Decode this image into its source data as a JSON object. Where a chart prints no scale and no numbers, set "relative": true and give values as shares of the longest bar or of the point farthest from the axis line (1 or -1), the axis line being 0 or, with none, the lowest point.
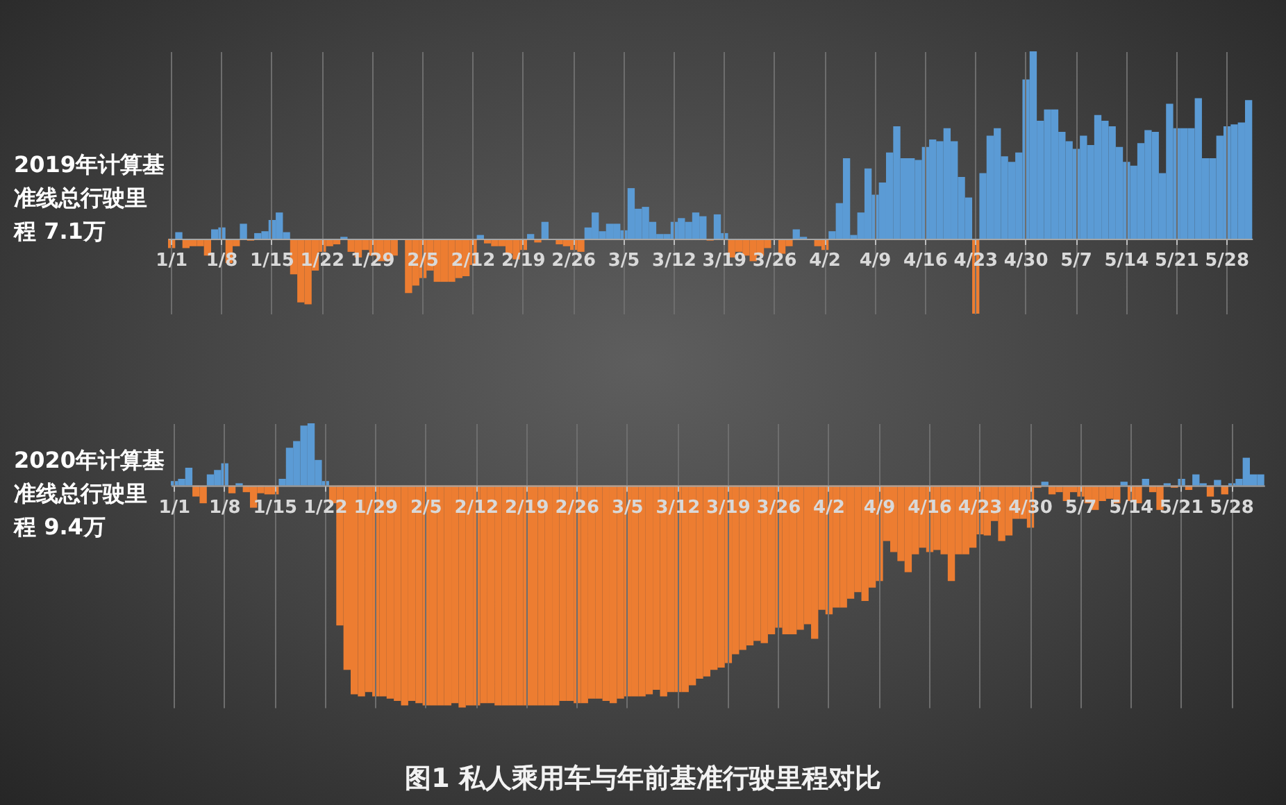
{
  "chart_data": [
    {
      "type": "bar",
      "ylabel": "2019年计算基准线总行驶里程 7.1万",
      "relative": true,
      "grid": "x",
      "categories": [
        "1/1",
        null,
        null,
        null,
        null,
        null,
        null,
        "1/8",
        null,
        null,
        null,
        null,
        null,
        null,
        "1/15",
        null,
        null,
        null,
        null,
        null,
        null,
        "1/22",
        null,
        null,
        null,
        null,
        null,
        null,
        "1/29",
        null,
        null,
        null,
        null,
        null,
        null,
        "2/5",
        null,
        null,
        null,
        null,
        null,
        null,
        "2/12",
        null,
        null,
        null,
        null,
        null,
        null,
        "2/19",
        null,
        null,
        null,
        null,
        null,
        null,
        "2/26",
        null,
        null,
        null,
        null,
        null,
        null,
        "3/5",
        null,
        null,
        null,
        null,
        null,
        null,
        "3/12",
        null,
        null,
        null,
        null,
        null,
        null,
        "3/19",
        null,
        null,
        null,
        null,
        null,
        null,
        "3/26",
        null,
        null,
        null,
        null,
        null,
        null,
        "4/2",
        null,
        null,
        null,
        null,
        null,
        null,
        "4/9",
        null,
        null,
        null,
        null,
        null,
        null,
        "4/16",
        null,
        null,
        null,
        null,
        null,
        null,
        "4/23",
        null,
        null,
        null,
        null,
        null,
        null,
        "4/30",
        null,
        null,
        null,
        null,
        null,
        null,
        "5/7",
        null,
        null,
        null,
        null,
        null,
        null,
        "5/14",
        null,
        null,
        null,
        null,
        null,
        null,
        "5/21",
        null,
        null,
        null,
        null,
        null,
        null,
        "5/28",
        null,
        null,
        null
      ],
      "series": [
        {
          "color": "#5b9bd5",
          "values": [
            null,
            0.035,
            null,
            null,
            null,
            null,
            0.05,
            0.06,
            null,
            null,
            0.08,
            null,
            0.03,
            0.04,
            0.1,
            0.14,
            0.035,
            null,
            null,
            null,
            null,
            null,
            null,
            null,
            0.01,
            null,
            null,
            null,
            null,
            null,
            null,
            null,
            null,
            null,
            null,
            null,
            null,
            null,
            null,
            null,
            null,
            null,
            null,
            0.02,
            null,
            null,
            null,
            null,
            null,
            null,
            0.025,
            null,
            0.09,
            null,
            null,
            null,
            null,
            null,
            0.06,
            0.14,
            0.04,
            0.08,
            0.08,
            0.045,
            0.27,
            0.16,
            0.17,
            0.09,
            0.025,
            0.025,
            0.09,
            0.11,
            0.09,
            0.14,
            0.12,
            null,
            0.13,
            0.03,
            null,
            null,
            null,
            null,
            null,
            null,
            null,
            null,
            null,
            0.05,
            0.01,
            null,
            null,
            null,
            0.04,
            0.19,
            0.43,
            0.02,
            0.14,
            0.375,
            0.235,
            0.3,
            0.46,
            0.6,
            0.43,
            0.43,
            0.42,
            0.49,
            0.53,
            0.52,
            0.59,
            0.52,
            0.33,
            0.22,
            null,
            0.35,
            0.55,
            0.59,
            0.44,
            0.41,
            0.46,
            0.85,
            1.0,
            0.63,
            0.69,
            0.69,
            0.57,
            0.52,
            0.48,
            0.55,
            0.5,
            0.66,
            0.63,
            0.6,
            0.49,
            0.41,
            0.39,
            0.51,
            0.58,
            0.57,
            0.35,
            0.72,
            0.59,
            0.59,
            0.59,
            0.75,
            0.43,
            0.43,
            0.55,
            0.6,
            0.61,
            0.62,
            0.74
          ]
        },
        {
          "color": "#ed7d31",
          "values": [
            -0.05,
            null,
            -0.05,
            -0.04,
            -0.04,
            -0.09,
            null,
            null,
            -0.13,
            -0.04,
            null,
            -0.01,
            null,
            null,
            null,
            null,
            null,
            -0.19,
            -0.34,
            -0.35,
            -0.17,
            -0.07,
            -0.04,
            -0.03,
            null,
            -0.07,
            -0.1,
            -0.06,
            -0.09,
            -0.12,
            -0.12,
            -0.09,
            null,
            -0.29,
            -0.25,
            -0.21,
            -0.17,
            -0.23,
            -0.23,
            -0.23,
            -0.21,
            -0.2,
            -0.14,
            null,
            -0.025,
            -0.04,
            -0.04,
            -0.08,
            -0.11,
            -0.06,
            null,
            -0.02,
            null,
            null,
            -0.03,
            -0.04,
            -0.06,
            -0.07,
            null,
            null,
            null,
            null,
            null,
            null,
            null,
            null,
            null,
            null,
            null,
            null,
            null,
            null,
            null,
            null,
            null,
            -0.01,
            null,
            null,
            -0.1,
            -0.07,
            -0.09,
            -0.12,
            -0.09,
            -0.05,
            null,
            -0.08,
            -0.04,
            null,
            null,
            null,
            -0.04,
            -0.06,
            null,
            null,
            null,
            null,
            null,
            null,
            null,
            null,
            null,
            null,
            null,
            null,
            null,
            null,
            null,
            null,
            null,
            null,
            null,
            null,
            -0.4,
            null,
            null,
            null,
            null,
            null,
            null,
            null,
            null,
            null,
            null,
            null,
            null,
            null,
            null,
            null,
            null,
            null,
            null,
            null,
            null,
            null,
            null,
            null,
            null,
            null,
            null,
            null,
            null,
            null,
            null,
            null,
            null,
            null,
            null,
            null,
            null,
            null,
            null
          ]
        }
      ]
    },
    {
      "type": "bar",
      "ylabel": "2020年计算基准线总行驶里程 9.4万",
      "title": "图1  私人乘用车与年前基准行驶里程对比",
      "relative": true,
      "grid": "x",
      "categories": [
        "1/1",
        null,
        null,
        null,
        null,
        null,
        null,
        "1/8",
        null,
        null,
        null,
        null,
        null,
        null,
        "1/15",
        null,
        null,
        null,
        null,
        null,
        null,
        "1/22",
        null,
        null,
        null,
        null,
        null,
        null,
        "1/29",
        null,
        null,
        null,
        null,
        null,
        null,
        "2/5",
        null,
        null,
        null,
        null,
        null,
        null,
        "2/12",
        null,
        null,
        null,
        null,
        null,
        null,
        "2/19",
        null,
        null,
        null,
        null,
        null,
        null,
        "2/26",
        null,
        null,
        null,
        null,
        null,
        null,
        "3/5",
        null,
        null,
        null,
        null,
        null,
        null,
        "3/12",
        null,
        null,
        null,
        null,
        null,
        null,
        "3/19",
        null,
        null,
        null,
        null,
        null,
        null,
        "3/26",
        null,
        null,
        null,
        null,
        null,
        null,
        "4/2",
        null,
        null,
        null,
        null,
        null,
        null,
        "4/9",
        null,
        null,
        null,
        null,
        null,
        null,
        "4/16",
        null,
        null,
        null,
        null,
        null,
        null,
        "4/23",
        null,
        null,
        null,
        null,
        null,
        null,
        "4/30",
        null,
        null,
        null,
        null,
        null,
        null,
        "5/7",
        null,
        null,
        null,
        null,
        null,
        null,
        "5/14",
        null,
        null,
        null,
        null,
        null,
        null,
        "5/21",
        null,
        null,
        null,
        null,
        null,
        null,
        "5/28",
        null,
        null,
        null,
        null
      ],
      "series": [
        {
          "color": "#5b9bd5",
          "values": [
            0.02,
            0.03,
            0.08,
            null,
            null,
            0.05,
            0.07,
            0.1,
            null,
            0.01,
            null,
            null,
            null,
            null,
            null,
            0.03,
            0.17,
            0.2,
            0.27,
            0.28,
            0.115,
            0.02,
            null,
            null,
            null,
            null,
            null,
            null,
            null,
            null,
            null,
            null,
            null,
            null,
            null,
            null,
            null,
            null,
            null,
            null,
            null,
            null,
            null,
            null,
            null,
            null,
            null,
            null,
            null,
            null,
            null,
            null,
            null,
            null,
            null,
            null,
            null,
            null,
            null,
            null,
            null,
            null,
            null,
            null,
            null,
            null,
            null,
            null,
            null,
            null,
            null,
            null,
            null,
            null,
            null,
            null,
            null,
            null,
            null,
            null,
            null,
            null,
            null,
            null,
            null,
            null,
            null,
            null,
            null,
            null,
            null,
            null,
            null,
            null,
            null,
            null,
            null,
            null,
            null,
            null,
            null,
            null,
            null,
            null,
            null,
            null,
            null,
            null,
            null,
            null,
            null,
            null,
            null,
            null,
            null,
            null,
            null,
            null,
            null,
            null,
            null,
            0.017,
            null,
            null,
            null,
            null,
            null,
            null,
            null,
            null,
            null,
            null,
            0.017,
            null,
            null,
            0.03,
            null,
            null,
            0.01,
            null,
            0.03,
            null,
            0.05,
            0.01,
            null,
            0.025,
            null,
            0.01,
            0.03,
            0.125,
            0.05,
            0.05
          ]
        },
        {
          "color": "#ed7d31",
          "values": [
            null,
            null,
            null,
            -0.05,
            -0.08,
            null,
            null,
            null,
            -0.035,
            null,
            -0.03,
            -0.1,
            -0.035,
            -0.04,
            -0.04,
            null,
            null,
            null,
            null,
            null,
            null,
            null,
            -0.08,
            -0.63,
            -0.83,
            -0.94,
            -0.95,
            -0.93,
            -0.95,
            -0.95,
            -0.96,
            -0.97,
            -0.99,
            -0.97,
            -0.98,
            -0.99,
            -0.99,
            -0.99,
            -0.99,
            -0.98,
            -1.0,
            -0.99,
            -0.99,
            -0.98,
            -0.98,
            -0.99,
            -0.99,
            -0.99,
            -0.99,
            -0.99,
            -0.99,
            -0.99,
            -0.99,
            -0.99,
            -0.97,
            -0.97,
            -0.98,
            -0.98,
            -0.96,
            -0.96,
            -0.97,
            -0.98,
            -0.96,
            -0.95,
            -0.95,
            -0.95,
            -0.94,
            -0.92,
            -0.95,
            -0.93,
            -0.93,
            -0.93,
            -0.9,
            -0.87,
            -0.86,
            -0.83,
            -0.82,
            -0.8,
            -0.76,
            -0.74,
            -0.72,
            -0.7,
            -0.71,
            -0.67,
            -0.64,
            -0.67,
            -0.67,
            -0.65,
            -0.625,
            -0.69,
            -0.56,
            -0.58,
            -0.55,
            -0.55,
            -0.51,
            -0.48,
            -0.52,
            -0.46,
            -0.43,
            -0.25,
            -0.3,
            -0.34,
            -0.39,
            -0.31,
            -0.28,
            -0.3,
            -0.29,
            -0.31,
            -0.43,
            -0.31,
            -0.31,
            -0.28,
            -0.22,
            -0.225,
            -0.16,
            -0.25,
            -0.225,
            -0.15,
            -0.15,
            -0.19,
            -0.01,
            null,
            -0.04,
            -0.03,
            -0.07,
            -0.03,
            -0.05,
            -0.08,
            -0.11,
            -0.07,
            -0.06,
            -0.08,
            null,
            -0.07,
            -0.08,
            null,
            -0.03,
            -0.11,
            null,
            -0.01,
            null,
            -0.02,
            null,
            null,
            -0.05,
            null,
            -0.04,
            null,
            null,
            null,
            null,
            null
          ]
        }
      ]
    }
  ]
}
